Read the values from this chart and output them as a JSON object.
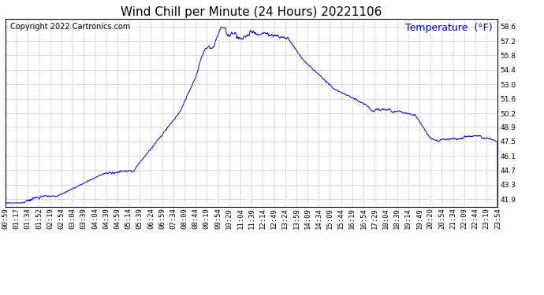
{
  "title": "Wind Chill per Minute (24 Hours) 20221106",
  "copyright_text": "Copyright 2022 Cartronics.com",
  "legend_label": "Temperature  (°F)",
  "line_color": "#0000cc",
  "background_color": "#ffffff",
  "grid_color": "#bbbbbb",
  "yticks": [
    41.9,
    43.3,
    44.7,
    46.1,
    47.5,
    48.9,
    50.2,
    51.6,
    53.0,
    54.4,
    55.8,
    57.2,
    58.6
  ],
  "ylim": [
    41.2,
    59.3
  ],
  "xtick_labels": [
    "00:59",
    "01:17",
    "01:34",
    "01:52",
    "02:19",
    "02:54",
    "03:04",
    "03:39",
    "04:04",
    "04:39",
    "04:59",
    "05:14",
    "05:39",
    "06:24",
    "06:59",
    "07:34",
    "08:09",
    "08:44",
    "09:19",
    "09:54",
    "10:29",
    "11:04",
    "11:39",
    "12:14",
    "12:49",
    "13:24",
    "13:59",
    "14:09",
    "14:34",
    "15:09",
    "15:44",
    "16:19",
    "16:54",
    "17:29",
    "18:04",
    "18:39",
    "19:14",
    "19:49",
    "20:20",
    "20:54",
    "21:34",
    "22:09",
    "22:44",
    "23:19",
    "23:54"
  ],
  "title_fontsize": 11,
  "legend_fontsize": 9,
  "tick_fontsize": 6.5,
  "copyright_fontsize": 7
}
